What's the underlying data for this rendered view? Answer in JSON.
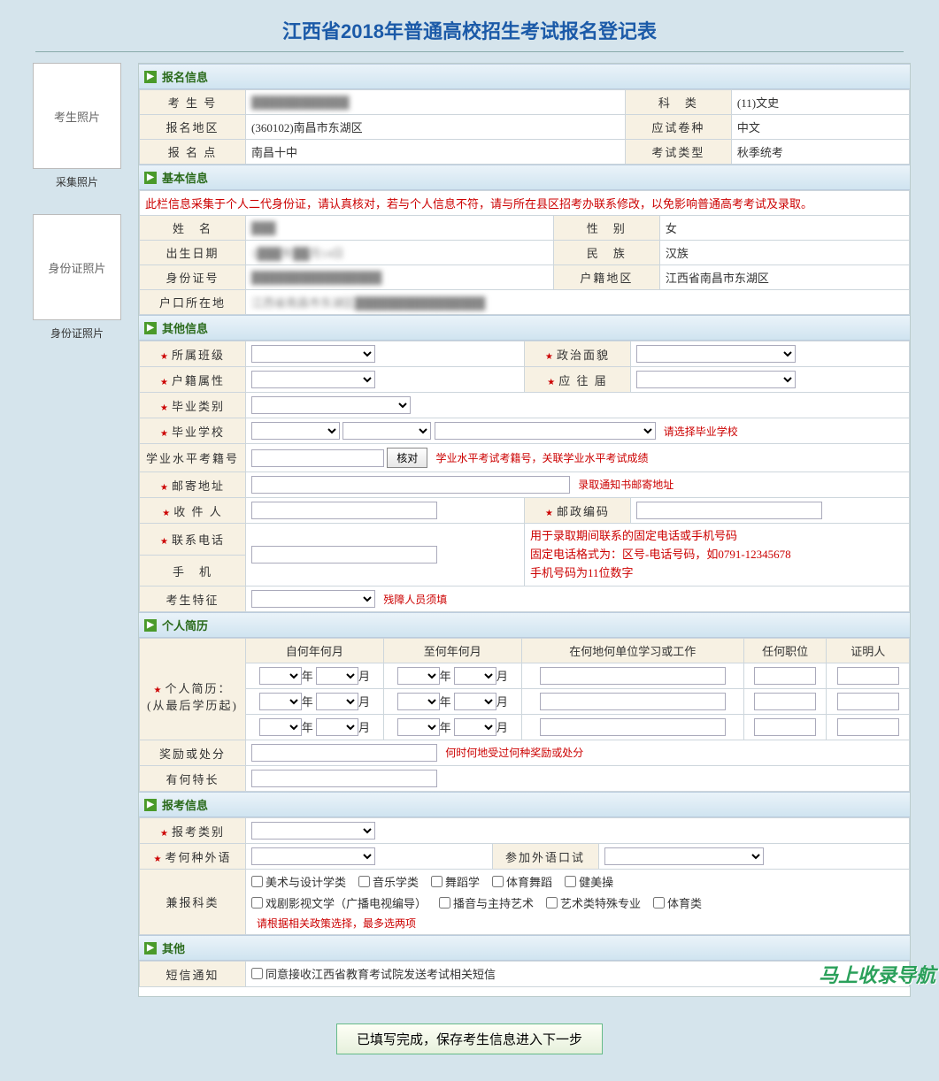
{
  "page_title": "江西省2018年普通高校招生考试报名登记表",
  "sidebar": {
    "photo1_label": "考生照片",
    "photo1_caption": "采集照片",
    "photo2_label": "身份证照片",
    "photo2_caption": "身份证照片"
  },
  "sections": {
    "registration": {
      "title": "报名信息",
      "fields": {
        "exam_no_label": "考 生 号",
        "exam_no": "████████████",
        "subject_label": "科　类",
        "subject": "(11)文史",
        "region_label": "报名地区",
        "region": "(360102)南昌市东湖区",
        "paper_label": "应试卷种",
        "paper": "中文",
        "site_label": "报 名 点",
        "site": "南昌十中",
        "type_label": "考试类型",
        "type": "秋季统考"
      }
    },
    "basic": {
      "title": "基本信息",
      "notice": "此栏信息采集于个人二代身份证，请认真核对，若与个人信息不符，请与所在县区招考办联系修改，以免影响普通高考考试及录取。",
      "fields": {
        "name_label": "姓　名",
        "name": "███",
        "sex_label": "性　别",
        "sex": "女",
        "birth_label": "出生日期",
        "birth": "1███年██月14日",
        "nation_label": "民　族",
        "nation": "汉族",
        "id_label": "身份证号",
        "id": "████████████████",
        "huji_label": "户籍地区",
        "huji": "江西省南昌市东湖区",
        "hukou_label": "户口所在地",
        "hukou": "江西省南昌市东湖区████████████████"
      }
    },
    "other": {
      "title": "其他信息",
      "class_label": "所属班级",
      "politic_label": "政治面貌",
      "hukou_attr_label": "户籍属性",
      "fresh_label": "应 往 届",
      "grad_type_label": "毕业类别",
      "grad_school_label": "毕业学校",
      "grad_school_note": "请选择毕业学校",
      "xueye_label": "学业水平考籍号",
      "xueye_btn": "核对",
      "xueye_note": "学业水平考试考籍号，关联学业水平考试成绩",
      "mail_addr_label": "邮寄地址",
      "mail_addr_note": "录取通知书邮寄地址",
      "recipient_label": "收 件 人",
      "zip_label": "邮政编码",
      "phone_label": "联系电话",
      "phone_note1": "用于录取期间联系的固定电话或手机号码",
      "phone_note2": "固定电话格式为：区号-电话号码，如0791-12345678",
      "phone_note3": "手机号码为11位数字",
      "mobile_label": "手　机",
      "feature_label": "考生特征",
      "feature_note": "残障人员须填"
    },
    "resume": {
      "title": "个人简历",
      "row_label": "个人简历：\n(从最后学历起)",
      "cols": {
        "from": "自何年何月",
        "to": "至何年何月",
        "where": "在何地何单位学习或工作",
        "post": "任何职位",
        "witness": "证明人"
      },
      "year_suffix": "年",
      "month_suffix": "月",
      "award_label": "奖励或处分",
      "award_note": "何时何地受过何种奖励或处分",
      "talent_label": "有何特长"
    },
    "apply": {
      "title": "报考信息",
      "category_label": "报考类别",
      "lang_label": "考何种外语",
      "oral_label": "参加外语口试",
      "extra_label": "兼报科类",
      "extra_opts": [
        "美术与设计学类",
        "音乐学类",
        "舞蹈学",
        "体育舞蹈",
        "健美操",
        "戏剧影视文学（广播电视编导）",
        "播音与主持艺术",
        "艺术类特殊专业",
        "体育类"
      ],
      "extra_note": "请根据相关政策选择，最多选两项"
    },
    "other2": {
      "title": "其他",
      "sms_label": "短信通知",
      "sms_opt": "同意接收江西省教育考试院发送考试相关短信"
    }
  },
  "footer_btn": "已填写完成，保存考生信息进入下一步",
  "watermark": "马上收录导航",
  "colors": {
    "page_bg": "#d5e4ec",
    "header_text": "#1b5aa8",
    "section_bg_top": "#eaf3f9",
    "section_bg_bot": "#d0e4f0",
    "section_text": "#2a6a1a",
    "arrow_bg": "#4a9a2a",
    "label_bg": "#f7f1e3",
    "border": "#cdd6dc",
    "warn": "#c00",
    "watermark": "#2aa05a"
  }
}
